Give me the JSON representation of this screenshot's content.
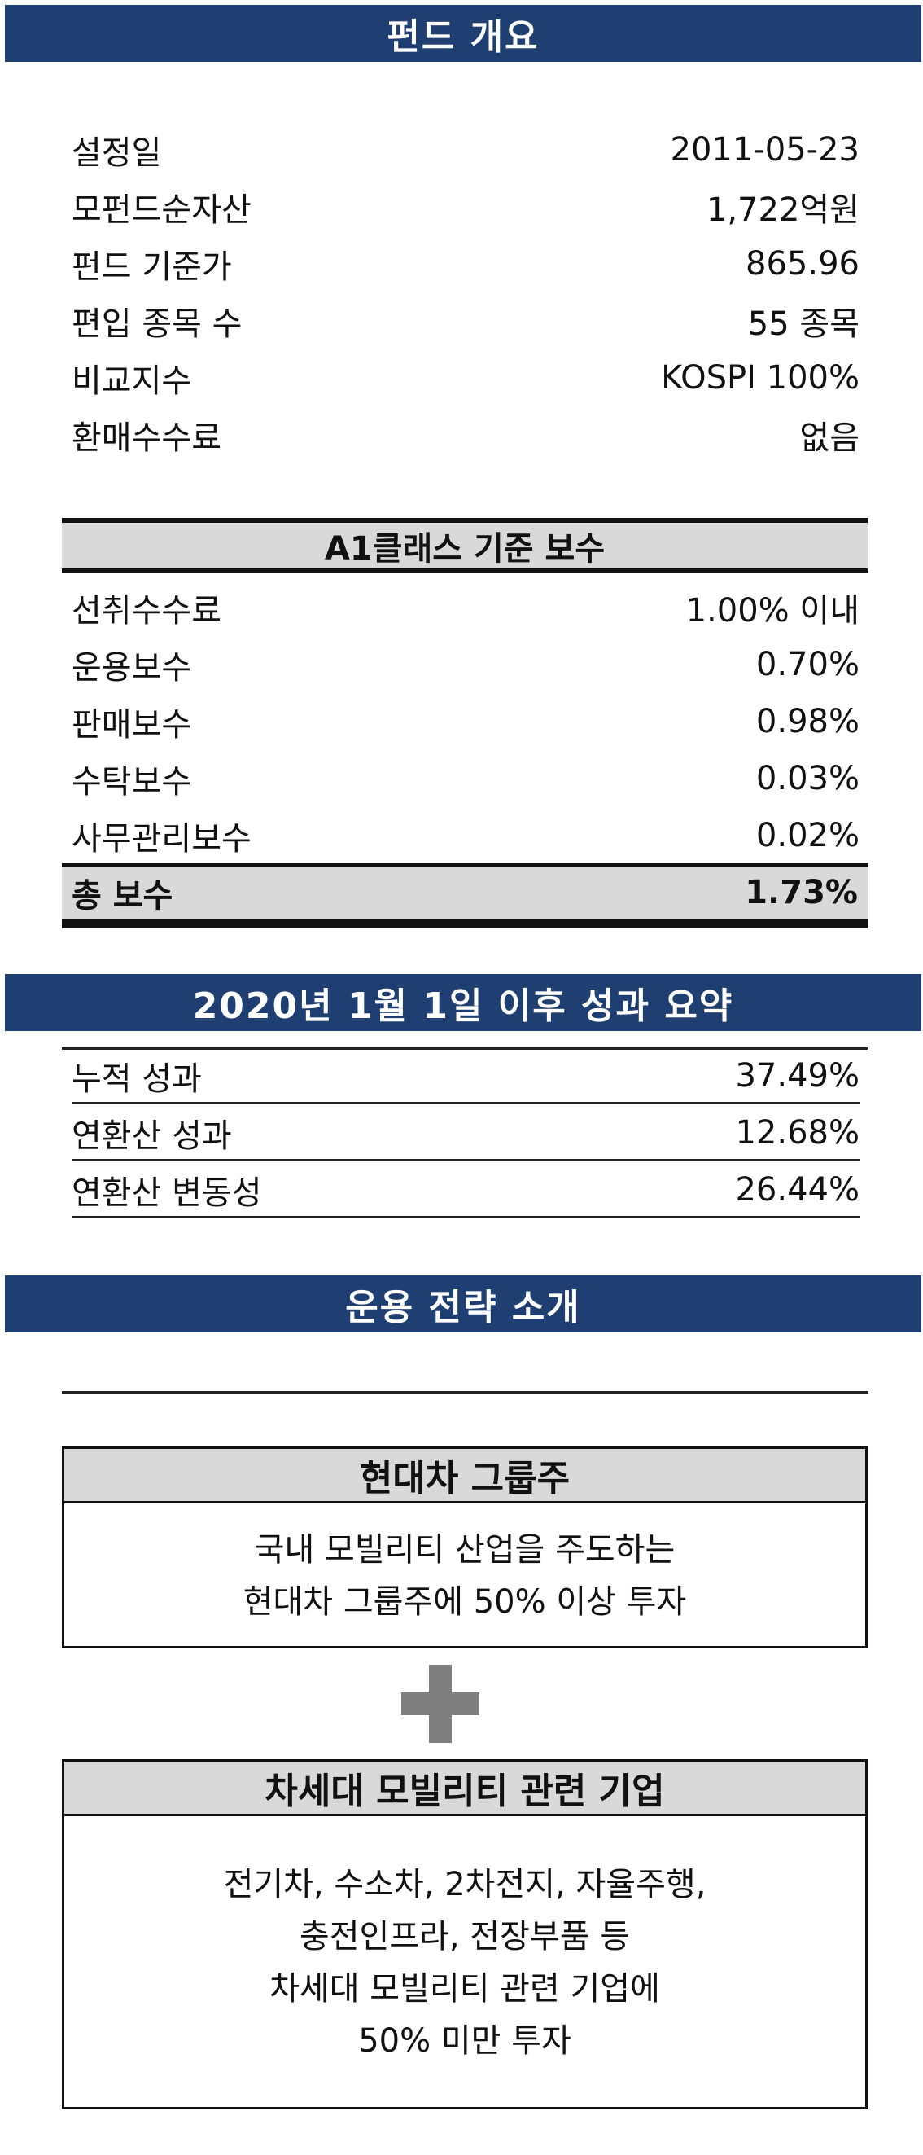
{
  "sections": {
    "overview_title": "펀드 개요",
    "fees_title": "A1클래스 기준 보수",
    "performance_title": "2020년 1월 1일 이후 성과 요약",
    "strategy_title": "운용 전략 소개"
  },
  "overview": [
    {
      "label": "설정일",
      "value": "2011-05-23"
    },
    {
      "label": "모펀드순자산",
      "value": "1,722억원"
    },
    {
      "label": "펀드 기준가",
      "value": "865.96"
    },
    {
      "label": "편입 종목 수",
      "value": "55 종목"
    },
    {
      "label": "비교지수",
      "value": "KOSPI 100%"
    },
    {
      "label": "환매수수료",
      "value": "없음"
    }
  ],
  "fees": [
    {
      "label": "선취수수료",
      "value": "1.00% 이내"
    },
    {
      "label": "운용보수",
      "value": "0.70%"
    },
    {
      "label": "판매보수",
      "value": "0.98%"
    },
    {
      "label": "수탁보수",
      "value": "0.03%"
    },
    {
      "label": "사무관리보수",
      "value": "0.02%"
    }
  ],
  "fees_total": {
    "label": "총 보수",
    "value": "1.73%"
  },
  "performance": [
    {
      "label": "누적 성과",
      "value": "37.49%"
    },
    {
      "label": "연환산 성과",
      "value": "12.68%"
    },
    {
      "label": "연환산 변동성",
      "value": "26.44%"
    }
  ],
  "strategy": {
    "box1": {
      "title": "현대차 그룹주",
      "lines": [
        "국내 모빌리티 산업을 주도하는",
        "현대차 그룹주에 50% 이상 투자"
      ]
    },
    "plus_icon": "plus-icon",
    "box2": {
      "title": "차세대 모빌리티 관련 기업",
      "lines": [
        "전기차, 수소차, 2차전지, 자율주행,",
        "충전인프라, 전장부품 등",
        "차세대 모빌리티 관련 기업에",
        "50% 미만 투자"
      ]
    }
  },
  "colors": {
    "header": "#1f3f73",
    "gray": "#d9d9d9",
    "plus": "#7f7f7f"
  }
}
